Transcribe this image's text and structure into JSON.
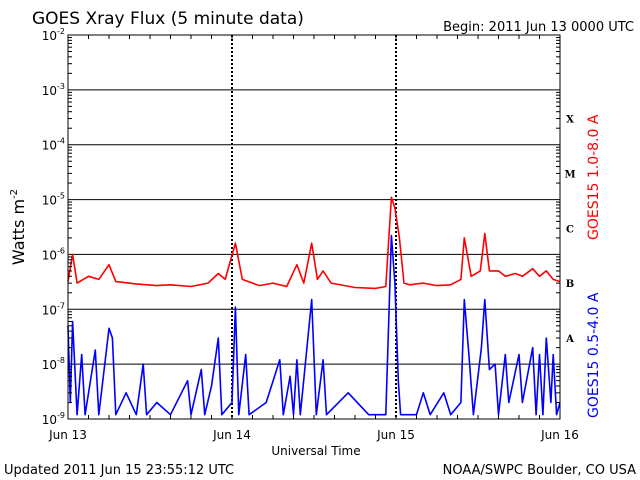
{
  "header": {
    "title": "GOES Xray Flux (5 minute data)",
    "begin": "Begin:  2011 Jun 13 0000 UTC"
  },
  "footer": {
    "updated": "Updated 2011 Jun 15 23:55:12 UTC",
    "credit": "NOAA/SWPC Boulder, CO USA"
  },
  "colors": {
    "long": "#ff0000",
    "short": "#0000ff",
    "grid": "#000000"
  },
  "chart_data": {
    "type": "line",
    "title": "GOES Xray Flux (5 minute data)",
    "xlabel": "Universal Time",
    "ylabel": "Watts m",
    "ylabel_sup": "-2",
    "yscale": "log",
    "ylim": [
      1e-09,
      0.01
    ],
    "xlim": [
      "2011-06-13T00:00",
      "2011-06-16T00:00"
    ],
    "x_ticks": [
      {
        "t": "2011-06-13T00:00",
        "label": "Jun 13"
      },
      {
        "t": "2011-06-14T00:00",
        "label": "Jun 14"
      },
      {
        "t": "2011-06-15T00:00",
        "label": "Jun 15"
      },
      {
        "t": "2011-06-16T00:00",
        "label": "Jun 16"
      }
    ],
    "y_ticks": [
      {
        "v": 1e-09,
        "base": "10",
        "exp": "-9"
      },
      {
        "v": 1e-08,
        "base": "10",
        "exp": "-8"
      },
      {
        "v": 1e-07,
        "base": "10",
        "exp": "-7"
      },
      {
        "v": 1e-06,
        "base": "10",
        "exp": "-6"
      },
      {
        "v": 1e-05,
        "base": "10",
        "exp": "-5"
      },
      {
        "v": 0.0001,
        "base": "10",
        "exp": "-4"
      },
      {
        "v": 0.001,
        "base": "10",
        "exp": "-3"
      },
      {
        "v": 0.01,
        "base": "10",
        "exp": "-2"
      }
    ],
    "flare_classes": [
      {
        "label": "A",
        "v": 3e-08
      },
      {
        "label": "B",
        "v": 3e-07
      },
      {
        "label": "C",
        "v": 3e-06
      },
      {
        "label": "M",
        "v": 3e-05
      },
      {
        "label": "X",
        "v": 0.0003
      }
    ],
    "grid": true,
    "series": [
      {
        "name": "GOES15 1.0-8.0 A",
        "color": "#ff0000",
        "points": [
          [
            "2011-06-13T00:00",
            3.2e-07
          ],
          [
            "2011-06-13T00:40",
            1e-06
          ],
          [
            "2011-06-13T01:20",
            3e-07
          ],
          [
            "2011-06-13T03:00",
            4e-07
          ],
          [
            "2011-06-13T04:30",
            3.5e-07
          ],
          [
            "2011-06-13T06:00",
            6.5e-07
          ],
          [
            "2011-06-13T07:00",
            3.2e-07
          ],
          [
            "2011-06-13T10:00",
            2.9e-07
          ],
          [
            "2011-06-13T13:00",
            2.7e-07
          ],
          [
            "2011-06-13T15:00",
            2.8e-07
          ],
          [
            "2011-06-13T18:00",
            2.6e-07
          ],
          [
            "2011-06-13T20:30",
            3e-07
          ],
          [
            "2011-06-13T22:00",
            4.5e-07
          ],
          [
            "2011-06-13T23:00",
            3.5e-07
          ],
          [
            "2011-06-14T00:30",
            1.6e-06
          ],
          [
            "2011-06-14T01:30",
            3.5e-07
          ],
          [
            "2011-06-14T04:00",
            2.7e-07
          ],
          [
            "2011-06-14T06:00",
            3e-07
          ],
          [
            "2011-06-14T08:00",
            2.6e-07
          ],
          [
            "2011-06-14T09:30",
            6.5e-07
          ],
          [
            "2011-06-14T10:30",
            3e-07
          ],
          [
            "2011-06-14T11:40",
            1.6e-06
          ],
          [
            "2011-06-14T12:30",
            3.5e-07
          ],
          [
            "2011-06-14T13:20",
            5e-07
          ],
          [
            "2011-06-14T14:30",
            3e-07
          ],
          [
            "2011-06-14T18:00",
            2.5e-07
          ],
          [
            "2011-06-14T21:00",
            2.4e-07
          ],
          [
            "2011-06-14T22:30",
            2.6e-07
          ],
          [
            "2011-06-14T23:20",
            1.1e-05
          ],
          [
            "2011-06-14T23:50",
            7e-06
          ],
          [
            "2011-06-15T00:30",
            2e-06
          ],
          [
            "2011-06-15T01:10",
            3e-07
          ],
          [
            "2011-06-15T02:00",
            2.8e-07
          ],
          [
            "2011-06-15T04:00",
            3e-07
          ],
          [
            "2011-06-15T06:00",
            2.7e-07
          ],
          [
            "2011-06-15T08:00",
            2.8e-07
          ],
          [
            "2011-06-15T09:30",
            3.5e-07
          ],
          [
            "2011-06-15T10:00",
            2e-06
          ],
          [
            "2011-06-15T11:00",
            4e-07
          ],
          [
            "2011-06-15T12:20",
            5e-07
          ],
          [
            "2011-06-15T13:00",
            2.4e-06
          ],
          [
            "2011-06-15T13:40",
            5e-07
          ],
          [
            "2011-06-15T15:00",
            5e-07
          ],
          [
            "2011-06-15T16:00",
            4e-07
          ],
          [
            "2011-06-15T17:30",
            4.5e-07
          ],
          [
            "2011-06-15T18:30",
            4e-07
          ],
          [
            "2011-06-15T20:00",
            5.5e-07
          ],
          [
            "2011-06-15T21:00",
            4e-07
          ],
          [
            "2011-06-15T22:00",
            5e-07
          ],
          [
            "2011-06-15T23:00",
            3.5e-07
          ],
          [
            "2011-06-16T00:00",
            3.2e-07
          ]
        ]
      },
      {
        "name": "GOES15 0.5-4.0 A",
        "color": "#0000ff",
        "points": [
          [
            "2011-06-13T00:00",
            5e-08
          ],
          [
            "2011-06-13T00:20",
            2e-09
          ],
          [
            "2011-06-13T00:40",
            6e-08
          ],
          [
            "2011-06-13T01:20",
            1.2e-09
          ],
          [
            "2011-06-13T02:00",
            1.5e-08
          ],
          [
            "2011-06-13T02:30",
            1.2e-09
          ],
          [
            "2011-06-13T04:00",
            1.8e-08
          ],
          [
            "2011-06-13T04:30",
            1.2e-09
          ],
          [
            "2011-06-13T06:00",
            4.5e-08
          ],
          [
            "2011-06-13T06:30",
            3e-08
          ],
          [
            "2011-06-13T07:00",
            1.2e-09
          ],
          [
            "2011-06-13T08:30",
            3e-09
          ],
          [
            "2011-06-13T10:00",
            1.2e-09
          ],
          [
            "2011-06-13T11:00",
            1e-08
          ],
          [
            "2011-06-13T11:30",
            1.2e-09
          ],
          [
            "2011-06-13T13:00",
            2e-09
          ],
          [
            "2011-06-13T15:00",
            1.2e-09
          ],
          [
            "2011-06-13T17:30",
            5e-09
          ],
          [
            "2011-06-13T18:00",
            1.2e-09
          ],
          [
            "2011-06-13T19:30",
            8e-09
          ],
          [
            "2011-06-13T20:00",
            1.2e-09
          ],
          [
            "2011-06-13T21:00",
            4e-09
          ],
          [
            "2011-06-13T22:00",
            3e-08
          ],
          [
            "2011-06-13T22:30",
            1.2e-09
          ],
          [
            "2011-06-14T00:00",
            2e-09
          ],
          [
            "2011-06-14T00:30",
            1.1e-07
          ],
          [
            "2011-06-14T01:00",
            1.2e-09
          ],
          [
            "2011-06-14T02:00",
            1.5e-08
          ],
          [
            "2011-06-14T02:30",
            1.2e-09
          ],
          [
            "2011-06-14T05:00",
            2e-09
          ],
          [
            "2011-06-14T07:00",
            1.2e-08
          ],
          [
            "2011-06-14T07:30",
            1.2e-09
          ],
          [
            "2011-06-14T08:30",
            6e-09
          ],
          [
            "2011-06-14T09:00",
            1.2e-09
          ],
          [
            "2011-06-14T09:30",
            1.2e-08
          ],
          [
            "2011-06-14T10:00",
            1.2e-09
          ],
          [
            "2011-06-14T11:40",
            1.5e-07
          ],
          [
            "2011-06-14T12:20",
            1.2e-09
          ],
          [
            "2011-06-14T13:20",
            1.2e-08
          ],
          [
            "2011-06-14T13:50",
            1.2e-09
          ],
          [
            "2011-06-14T17:00",
            3e-09
          ],
          [
            "2011-06-14T20:00",
            1.2e-09
          ],
          [
            "2011-06-14T22:30",
            1.2e-09
          ],
          [
            "2011-06-14T23:20",
            2.2e-06
          ],
          [
            "2011-06-14T23:50",
            3e-07
          ],
          [
            "2011-06-15T00:20",
            5e-09
          ],
          [
            "2011-06-15T00:40",
            1.2e-09
          ],
          [
            "2011-06-15T03:00",
            1.2e-09
          ],
          [
            "2011-06-15T04:00",
            3e-09
          ],
          [
            "2011-06-15T05:00",
            1.2e-09
          ],
          [
            "2011-06-15T07:00",
            3e-09
          ],
          [
            "2011-06-15T08:00",
            1.2e-09
          ],
          [
            "2011-06-15T09:30",
            2e-09
          ],
          [
            "2011-06-15T10:00",
            1.5e-07
          ],
          [
            "2011-06-15T10:40",
            1.5e-08
          ],
          [
            "2011-06-15T11:20",
            1.2e-09
          ],
          [
            "2011-06-15T12:30",
            2e-08
          ],
          [
            "2011-06-15T13:00",
            1.5e-07
          ],
          [
            "2011-06-15T13:40",
            8e-09
          ],
          [
            "2011-06-15T14:30",
            1e-08
          ],
          [
            "2011-06-15T15:00",
            1.2e-09
          ],
          [
            "2011-06-15T16:00",
            1.5e-08
          ],
          [
            "2011-06-15T16:30",
            2e-09
          ],
          [
            "2011-06-15T18:00",
            1.5e-08
          ],
          [
            "2011-06-15T18:30",
            2e-09
          ],
          [
            "2011-06-15T20:00",
            2e-08
          ],
          [
            "2011-06-15T20:30",
            1.2e-09
          ],
          [
            "2011-06-15T21:00",
            1.5e-08
          ],
          [
            "2011-06-15T21:30",
            1.2e-09
          ],
          [
            "2011-06-15T22:00",
            3e-08
          ],
          [
            "2011-06-15T22:40",
            2e-09
          ],
          [
            "2011-06-15T23:00",
            1.5e-08
          ],
          [
            "2011-06-15T23:30",
            1.2e-09
          ],
          [
            "2011-06-16T00:00",
            2e-09
          ]
        ]
      }
    ]
  }
}
